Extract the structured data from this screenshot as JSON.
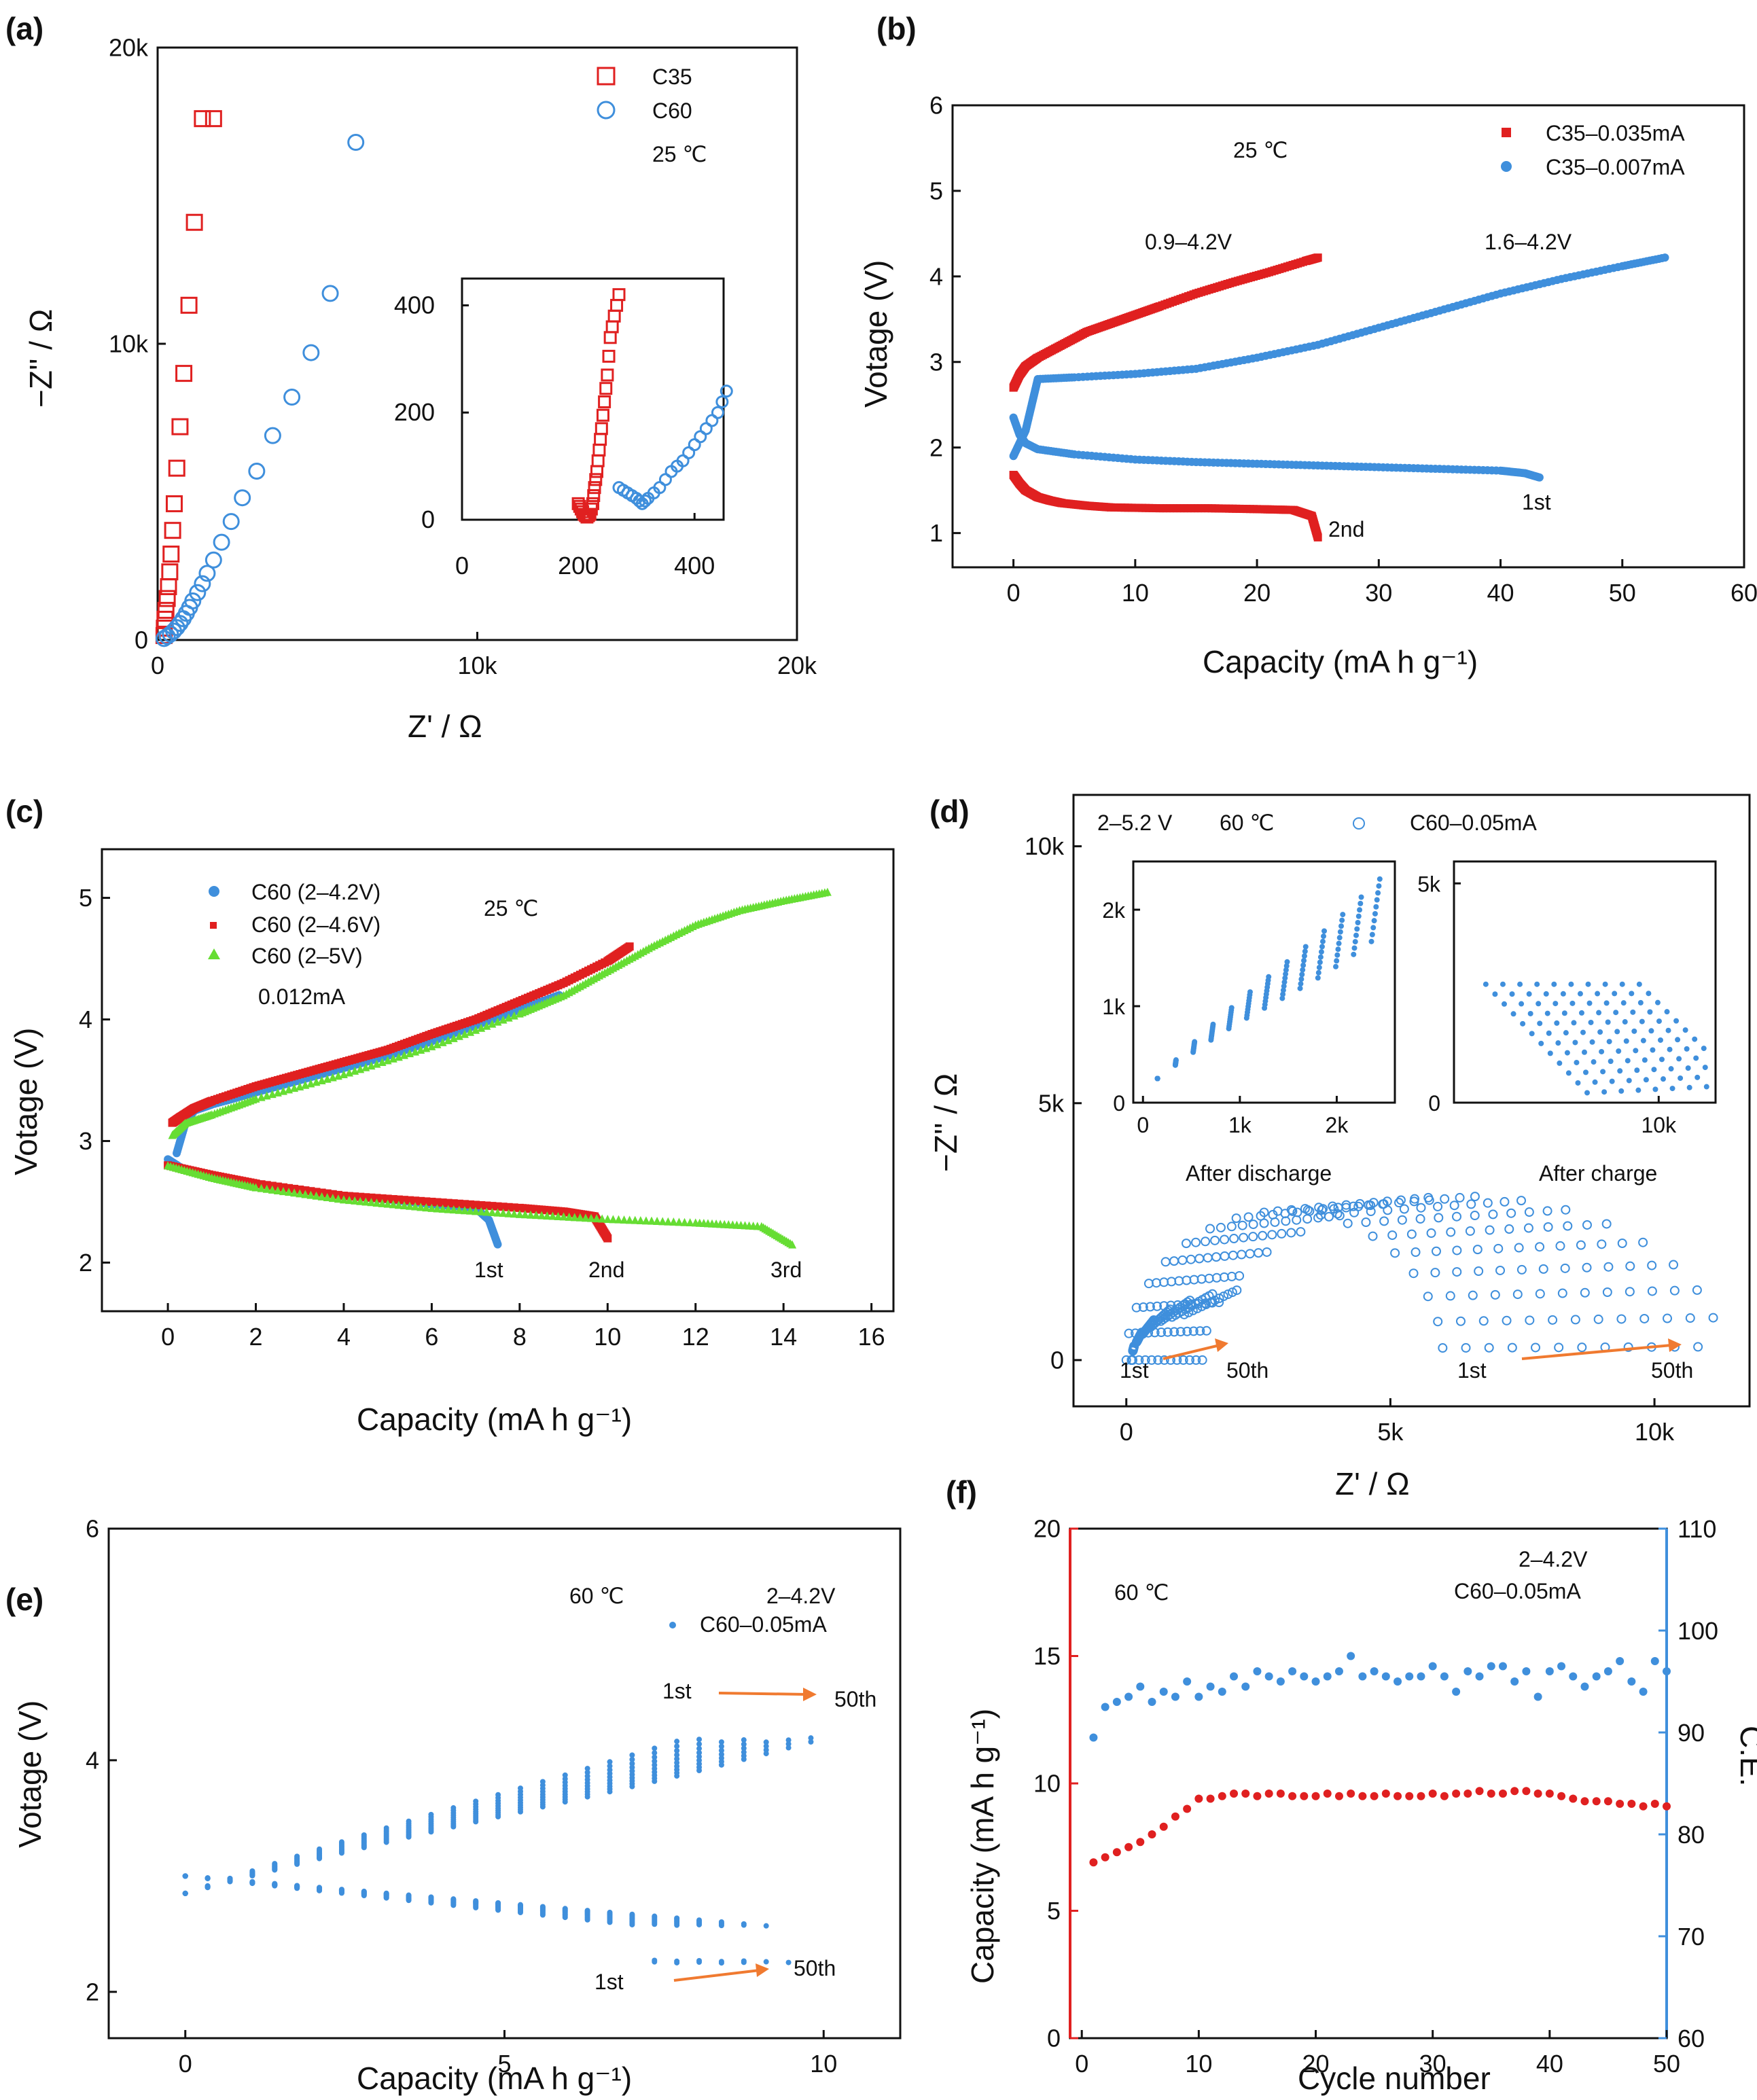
{
  "figure": {
    "panels": [
      "(a)",
      "(b)",
      "(c)",
      "(d)",
      "(e)",
      "(f)"
    ]
  },
  "colors": {
    "red": "#e02020",
    "blue": "#3f8fdc",
    "green": "#66dd33",
    "orange": "#f07a30",
    "axis_red": "#e02020",
    "axis_blue": "#3f8fdc"
  },
  "chart_data": [
    {
      "id": "a",
      "type": "scatter",
      "panel_label": "(a)",
      "title": "",
      "xlabel": "Z' / Ω",
      "ylabel": "−Z'' / Ω",
      "xlim": [
        0,
        20000
      ],
      "ylim": [
        0,
        20000
      ],
      "xticks": [
        0,
        10000,
        20000
      ],
      "xtick_labels": [
        "0",
        "10k",
        "20k"
      ],
      "yticks": [
        0,
        10000,
        20000
      ],
      "ytick_labels": [
        "0",
        "10k",
        "20k"
      ],
      "annotations": [
        "25 ℃"
      ],
      "series": [
        {
          "name": "C35",
          "marker": "square-open",
          "color": "#e02020",
          "x": [
            200,
            210,
            230,
            260,
            300,
            340,
            380,
            420,
            470,
            520,
            600,
            700,
            820,
            980,
            1150,
            1400,
            1750
          ],
          "y": [
            150,
            400,
            700,
            1000,
            1400,
            1800,
            2300,
            2900,
            3700,
            4600,
            5800,
            7200,
            9000,
            11300,
            14100,
            17600,
            17600
          ]
        },
        {
          "name": "C60",
          "marker": "circle-open",
          "color": "#3f8fdc",
          "x": [
            200,
            300,
            400,
            500,
            600,
            700,
            800,
            900,
            1000,
            1100,
            1250,
            1400,
            1550,
            1750,
            2000,
            2300,
            2650,
            3100,
            3600,
            4200,
            4800,
            5400,
            6200
          ],
          "y": [
            50,
            120,
            200,
            300,
            420,
            560,
            720,
            900,
            1100,
            1320,
            1600,
            1900,
            2250,
            2700,
            3300,
            4000,
            4800,
            5700,
            6900,
            8200,
            9700,
            11700,
            16800
          ]
        }
      ],
      "inset": {
        "xlim": [
          0,
          450
        ],
        "ylim": [
          0,
          450
        ],
        "xticks": [
          0,
          200,
          400
        ],
        "xtick_labels": [
          "0",
          "200",
          "400"
        ],
        "yticks": [
          0,
          200,
          400
        ],
        "ytick_labels": [
          "0",
          "200",
          "400"
        ],
        "series": [
          {
            "name": "C35",
            "x": [
              200,
              205,
              210,
              215,
              220,
              225,
              228,
              232,
              236,
              240,
              245,
              250,
              255,
              262,
              270
            ],
            "y": [
              30,
              20,
              10,
              5,
              10,
              30,
              60,
              90,
              130,
              170,
              220,
              270,
              340,
              380,
              420
            ]
          },
          {
            "name": "C60",
            "x": [
              270,
              285,
              300,
              310,
              320,
              340,
              360,
              380,
              400,
              420,
              440,
              455
            ],
            "y": [
              60,
              50,
              40,
              30,
              40,
              60,
              90,
              110,
              140,
              170,
              200,
              240
            ]
          }
        ]
      }
    },
    {
      "id": "b",
      "type": "scatter",
      "panel_label": "(b)",
      "xlabel": "Capacity    (mA h g⁻¹)",
      "ylabel": "Votage (V)",
      "xlim": [
        -5,
        60
      ],
      "ylim": [
        0.6,
        6
      ],
      "xticks": [
        0,
        10,
        20,
        30,
        40,
        50,
        60
      ],
      "xtick_labels": [
        "0",
        "10",
        "20",
        "30",
        "40",
        "50",
        "60"
      ],
      "yticks": [
        1,
        2,
        3,
        4,
        5,
        6
      ],
      "ytick_labels": [
        "1",
        "2",
        "3",
        "4",
        "5",
        "6"
      ],
      "annotations": [
        "25 ℃",
        "0.9–4.2V",
        "1.6–4.2V",
        "1st",
        "2nd"
      ],
      "series": [
        {
          "name": "C35–0.035mA",
          "color": "#e02020",
          "marker": "square",
          "curves": [
            {
              "x": [
                0,
                0.5,
                1,
                2,
                4,
                6,
                8,
                10,
                12,
                15,
                18,
                21,
                24,
                25
              ],
              "y": [
                2.7,
                2.85,
                2.95,
                3.05,
                3.2,
                3.35,
                3.45,
                3.55,
                3.65,
                3.8,
                3.93,
                4.05,
                4.18,
                4.22
              ]
            },
            {
              "x": [
                0,
                0.5,
                1,
                2,
                3,
                4,
                6,
                8,
                12,
                16,
                20,
                23,
                24.5,
                25
              ],
              "y": [
                1.68,
                1.58,
                1.5,
                1.42,
                1.38,
                1.35,
                1.32,
                1.3,
                1.29,
                1.29,
                1.28,
                1.27,
                1.2,
                0.95
              ]
            }
          ]
        },
        {
          "name": "C35–0.007mA",
          "color": "#3f8fdc",
          "marker": "circle",
          "curves": [
            {
              "x": [
                0,
                0.5,
                1,
                1.5,
                2,
                5,
                10,
                15,
                20,
                25,
                30,
                35,
                40,
                45,
                50,
                53.5
              ],
              "y": [
                1.9,
                2.05,
                2.2,
                2.5,
                2.8,
                2.82,
                2.86,
                2.92,
                3.05,
                3.2,
                3.4,
                3.6,
                3.8,
                3.97,
                4.12,
                4.22
              ]
            },
            {
              "x": [
                0,
                0.5,
                1,
                2,
                5,
                10,
                15,
                20,
                25,
                30,
                35,
                40,
                42,
                43.2
              ],
              "y": [
                2.35,
                2.15,
                2.05,
                1.98,
                1.92,
                1.86,
                1.83,
                1.81,
                1.79,
                1.77,
                1.75,
                1.73,
                1.7,
                1.65
              ]
            }
          ]
        }
      ]
    },
    {
      "id": "c",
      "type": "scatter",
      "panel_label": "(c)",
      "xlabel": "Capacity  (mA h g⁻¹)",
      "ylabel": "Votage (V)",
      "xlim": [
        -1.5,
        16.5
      ],
      "ylim": [
        1.6,
        5.4
      ],
      "xticks": [
        0,
        2,
        4,
        6,
        8,
        10,
        12,
        14,
        16
      ],
      "xtick_labels": [
        "0",
        "2",
        "4",
        "6",
        "8",
        "10",
        "12",
        "14",
        "16"
      ],
      "yticks": [
        2,
        3,
        4,
        5
      ],
      "ytick_labels": [
        "2",
        "3",
        "4",
        "5"
      ],
      "annotations": [
        "25 ℃",
        "0.012mA",
        "1st",
        "2nd",
        "3rd"
      ],
      "series": [
        {
          "name": "C60 (2–4.2V)",
          "color": "#3f8fdc",
          "marker": "circle",
          "curves": [
            {
              "x": [
                0.2,
                0.4,
                0.6,
                1,
                2,
                3,
                4,
                5,
                6,
                7,
                8,
                8.9
              ],
              "y": [
                2.9,
                3.15,
                3.25,
                3.3,
                3.4,
                3.5,
                3.6,
                3.7,
                3.82,
                3.95,
                4.08,
                4.2
              ]
            },
            {
              "x": [
                0,
                0.3,
                1,
                2,
                3,
                4,
                5,
                6,
                7,
                7.3,
                7.5
              ],
              "y": [
                2.85,
                2.78,
                2.72,
                2.65,
                2.6,
                2.55,
                2.52,
                2.48,
                2.45,
                2.35,
                2.15
              ]
            }
          ]
        },
        {
          "name": "C60 (2–4.6V)",
          "color": "#e02020",
          "marker": "square",
          "curves": [
            {
              "x": [
                0.1,
                0.3,
                0.6,
                1,
                2,
                3,
                4,
                5,
                6,
                7,
                8,
                9,
                10,
                10.5
              ],
              "y": [
                3.15,
                3.2,
                3.27,
                3.33,
                3.45,
                3.55,
                3.65,
                3.75,
                3.88,
                4.0,
                4.15,
                4.3,
                4.48,
                4.6
              ]
            },
            {
              "x": [
                0,
                1,
                2,
                4,
                6,
                8,
                9,
                9.7,
                10
              ],
              "y": [
                2.8,
                2.72,
                2.65,
                2.55,
                2.5,
                2.45,
                2.42,
                2.38,
                2.2
              ]
            }
          ]
        },
        {
          "name": "C60 (2–5V)",
          "color": "#66dd33",
          "marker": "triangle",
          "curves": [
            {
              "x": [
                0.1,
                0.4,
                1,
                2,
                4,
                6,
                8,
                9,
                10,
                11,
                12,
                13,
                14,
                15
              ],
              "y": [
                3.05,
                3.15,
                3.22,
                3.35,
                3.55,
                3.78,
                4.05,
                4.2,
                4.4,
                4.6,
                4.78,
                4.9,
                4.98,
                5.05
              ]
            },
            {
              "x": [
                0,
                1,
                2,
                4,
                6,
                8,
                10,
                12,
                13.5,
                14.2
              ],
              "y": [
                2.8,
                2.7,
                2.62,
                2.52,
                2.45,
                2.4,
                2.36,
                2.33,
                2.3,
                2.15
              ]
            }
          ]
        }
      ]
    },
    {
      "id": "d",
      "type": "scatter",
      "panel_label": "(d)",
      "xlabel": "Z' / Ω",
      "ylabel": "−Z'' / Ω",
      "xlim": [
        -1000,
        11800
      ],
      "ylim": [
        -900,
        11000
      ],
      "xticks": [
        0,
        5000,
        10000
      ],
      "xtick_labels": [
        "0",
        "5k",
        "10k"
      ],
      "yticks": [
        0,
        5000,
        10000
      ],
      "ytick_labels": [
        "0",
        "5k",
        "10k"
      ],
      "annotations": [
        "2–5.2 V",
        "60 ℃",
        "1st",
        "50th",
        "1st",
        "50th"
      ],
      "series": [
        {
          "name": "C60–0.05mA",
          "color": "#3f8fdc",
          "marker": "circle-open",
          "cycles": 50
        }
      ],
      "insets": [
        {
          "caption": "After discharge",
          "xlim": [
            -100,
            2600
          ],
          "ylim": [
            0,
            2500
          ],
          "xticks": [
            0,
            1000,
            2000
          ],
          "xtick_labels": [
            "0",
            "1k",
            "2k"
          ],
          "yticks": [
            0,
            1000,
            2000
          ],
          "ytick_labels": [
            "0",
            "1k",
            "2k"
          ]
        },
        {
          "caption": "After charge",
          "xlim": [
            1000,
            12500
          ],
          "ylim": [
            0,
            5500
          ],
          "xticks": [
            10000
          ],
          "xtick_labels": [
            "10k"
          ],
          "yticks": [
            0,
            5000
          ],
          "ytick_labels": [
            "0",
            "5k"
          ]
        }
      ]
    },
    {
      "id": "e",
      "type": "scatter",
      "panel_label": "(e)",
      "xlabel": "Capacity  (mA h g⁻¹)",
      "ylabel": "Votage (V)",
      "xlim": [
        -1.2,
        11.2
      ],
      "ylim": [
        1.6,
        6
      ],
      "xticks": [
        0,
        5,
        10
      ],
      "xtick_labels": [
        "0",
        "5",
        "10"
      ],
      "yticks": [
        2,
        4,
        6
      ],
      "ytick_labels": [
        "2",
        "4",
        "6"
      ],
      "annotations": [
        "60 ℃",
        "2–4.2V",
        "1st",
        "50th",
        "1st",
        "50th"
      ],
      "series": [
        {
          "name": "C60–0.05mA",
          "color": "#3f8fdc",
          "marker": "circle",
          "cycles": 50,
          "charge_end_capacity": [
            7.8,
            10.2
          ],
          "discharge_end_capacity": [
            7.5,
            9.7
          ]
        }
      ]
    },
    {
      "id": "f",
      "type": "scatter",
      "panel_label": "(f)",
      "xlabel": "Cycle number",
      "ylabel": "Capacity (mA h g⁻¹)",
      "y2label": "C.E.",
      "xlim": [
        -1,
        50
      ],
      "ylim": [
        0,
        20
      ],
      "y2lim": [
        60,
        110
      ],
      "xticks": [
        0,
        10,
        20,
        30,
        40,
        50
      ],
      "xtick_labels": [
        "0",
        "10",
        "20",
        "30",
        "40",
        "50"
      ],
      "yticks": [
        0,
        5,
        10,
        15,
        20
      ],
      "ytick_labels": [
        "0",
        "5",
        "10",
        "15",
        "20"
      ],
      "y2ticks": [
        60,
        70,
        80,
        90,
        100,
        110
      ],
      "y2tick_labels": [
        "60",
        "70",
        "80",
        "90",
        "100",
        "110"
      ],
      "annotations": [
        "60 ℃",
        "2–4.2V",
        "C60–0.05mA"
      ],
      "x": [
        1,
        2,
        3,
        4,
        5,
        6,
        7,
        8,
        9,
        10,
        11,
        12,
        13,
        14,
        15,
        16,
        17,
        18,
        19,
        20,
        21,
        22,
        23,
        24,
        25,
        26,
        27,
        28,
        29,
        30,
        31,
        32,
        33,
        34,
        35,
        36,
        37,
        38,
        39,
        40,
        41,
        42,
        43,
        44,
        45,
        46,
        47,
        48,
        49,
        50
      ],
      "series": [
        {
          "name": "Capacity",
          "axis": "left",
          "color": "#e02020",
          "values": [
            6.9,
            7.1,
            7.3,
            7.5,
            7.7,
            8.0,
            8.3,
            8.7,
            9.0,
            9.4,
            9.4,
            9.5,
            9.6,
            9.6,
            9.5,
            9.6,
            9.6,
            9.5,
            9.5,
            9.5,
            9.6,
            9.5,
            9.6,
            9.5,
            9.5,
            9.6,
            9.5,
            9.5,
            9.5,
            9.6,
            9.5,
            9.6,
            9.6,
            9.7,
            9.6,
            9.6,
            9.7,
            9.7,
            9.6,
            9.6,
            9.5,
            9.4,
            9.3,
            9.3,
            9.3,
            9.2,
            9.2,
            9.1,
            9.2,
            9.1
          ]
        },
        {
          "name": "C.E.",
          "axis": "right",
          "color": "#3f8fdc",
          "values": [
            89.5,
            92.5,
            93.0,
            93.5,
            94.5,
            93.0,
            94.0,
            93.5,
            95.0,
            93.5,
            94.5,
            94.0,
            95.5,
            94.5,
            96.0,
            95.5,
            95.0,
            96.0,
            95.5,
            95.0,
            95.5,
            96.0,
            97.5,
            95.5,
            96.0,
            95.5,
            95.0,
            95.5,
            95.5,
            96.5,
            95.5,
            94.0,
            96.0,
            95.5,
            96.5,
            96.5,
            95.0,
            96.0,
            93.5,
            96.0,
            96.5,
            95.5,
            94.5,
            95.5,
            96.0,
            97.0,
            95.0,
            94.0,
            97.0,
            96.0
          ]
        }
      ]
    }
  ],
  "legends": {
    "a": [
      "C35",
      "C60"
    ],
    "b": [
      "C35–0.035mA",
      "C35–0.007mA"
    ],
    "c": [
      "C60 (2–4.2V)",
      "C60 (2–4.6V)",
      "C60 (2–5V)"
    ],
    "d": [
      "C60–0.05mA"
    ],
    "e": [
      "C60–0.05mA"
    ]
  }
}
